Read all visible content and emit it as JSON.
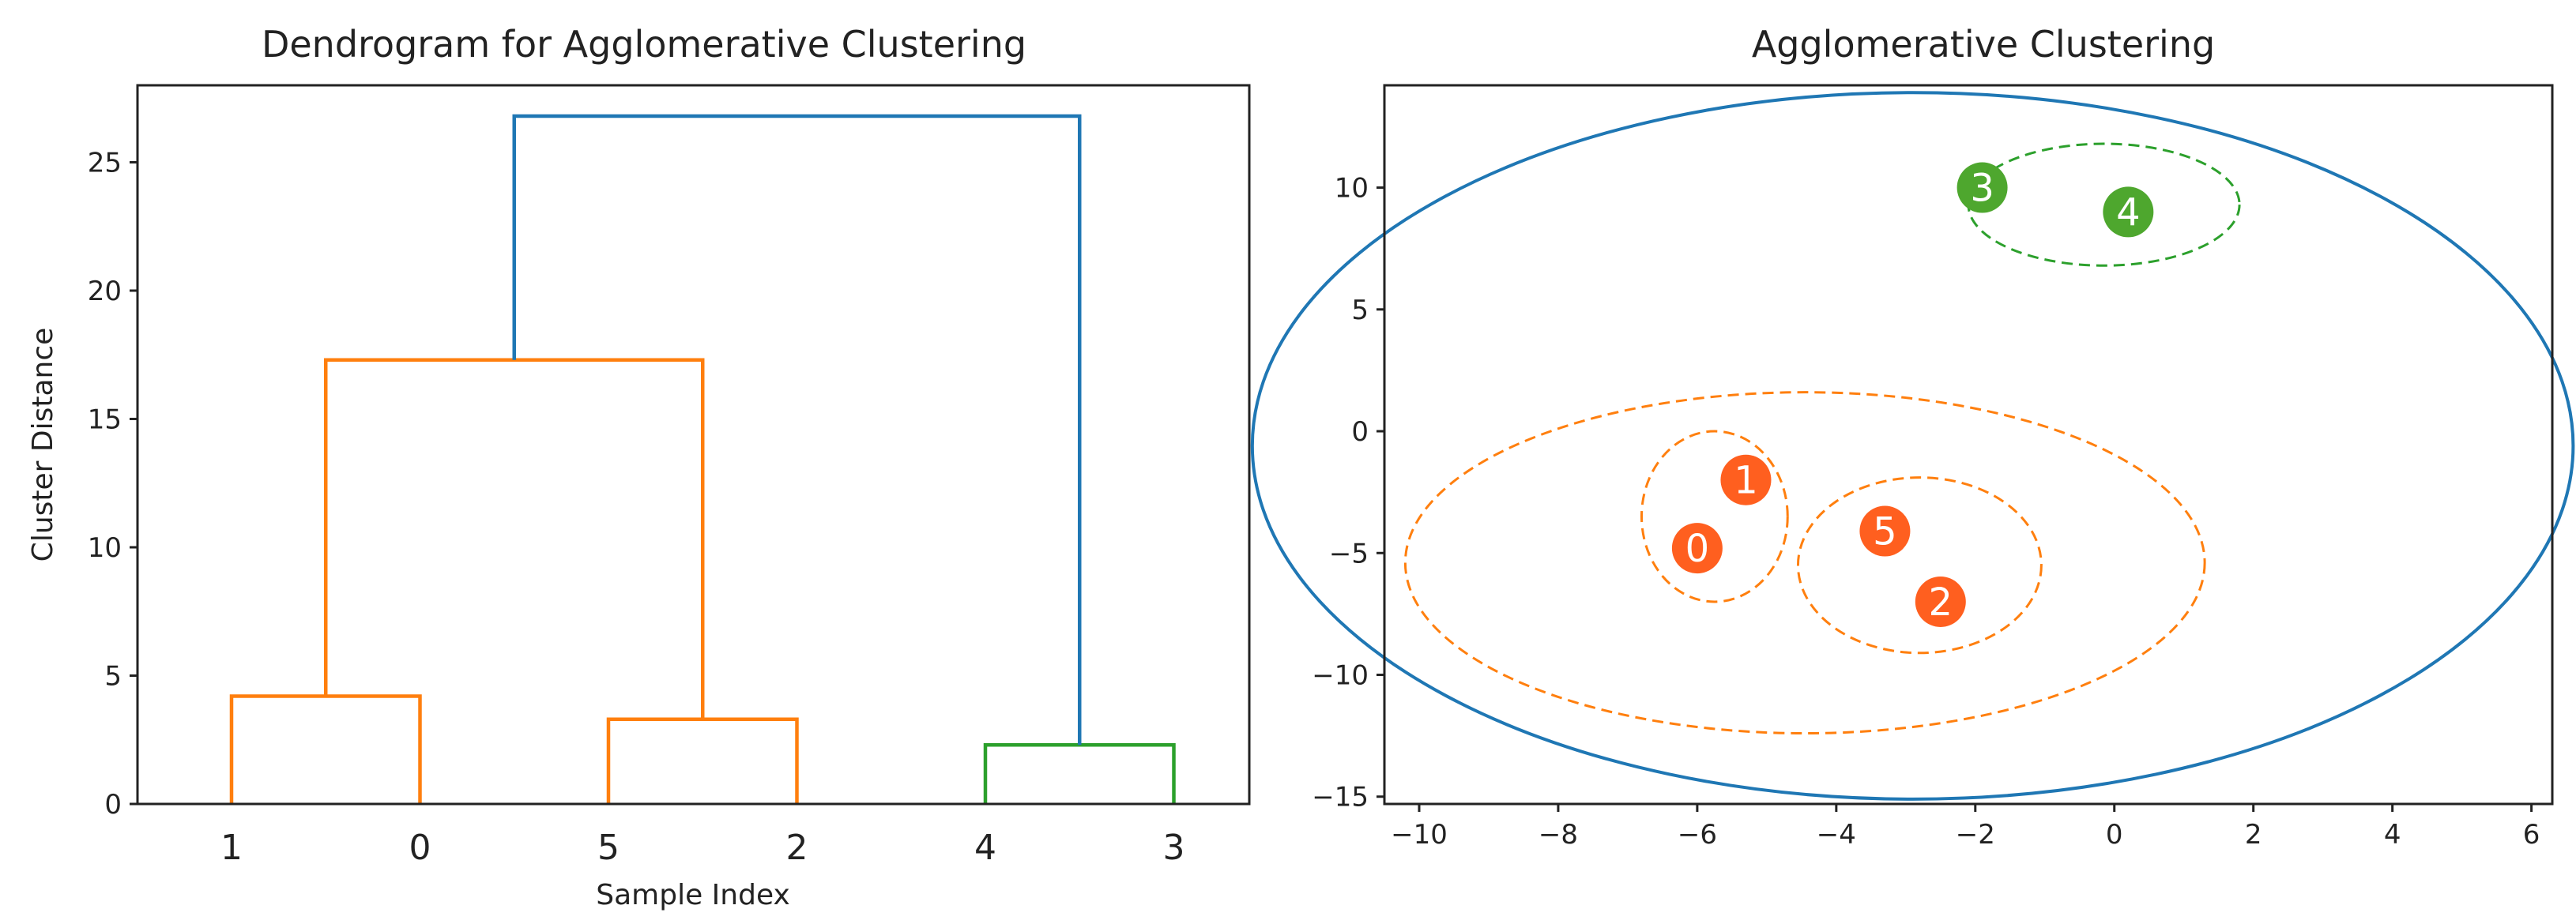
{
  "colors": {
    "orange": "#ff7f0e",
    "blue": "#1f77b4",
    "green": "#2ca02c",
    "marker_orange": "#ff5f1f",
    "marker_green": "#4ea72e"
  },
  "chart_data": [
    {
      "type": "dendrogram",
      "title": "Dendrogram for Agglomerative Clustering",
      "xlabel": "Sample Index",
      "ylabel": "Cluster Distance",
      "leaf_order": [
        "1",
        "0",
        "5",
        "2",
        "4",
        "3"
      ],
      "ylim": [
        0,
        28
      ],
      "yticks": [
        0,
        5,
        10,
        15,
        20,
        25
      ],
      "links": [
        {
          "leaves": [
            0,
            1
          ],
          "height": 4.2,
          "color": "orange"
        },
        {
          "leaves": [
            2,
            3
          ],
          "height": 3.3,
          "color": "orange"
        },
        {
          "leaves": [
            4,
            5
          ],
          "height": 2.3,
          "color": "green"
        },
        {
          "leaves": [
            0.5,
            2.5
          ],
          "height": 17.3,
          "color": "orange"
        },
        {
          "leaves": [
            1.5,
            4.5
          ],
          "height": 26.8,
          "color": "blue"
        }
      ]
    },
    {
      "type": "scatter",
      "title": "Agglomerative Clustering",
      "xlim": [
        -10.5,
        6.3
      ],
      "ylim": [
        -15.3,
        14.2
      ],
      "xticks": [
        -10,
        -8,
        -6,
        -4,
        -2,
        0,
        2,
        4,
        6
      ],
      "yticks": [
        -15,
        -10,
        -5,
        0,
        5,
        10
      ],
      "points": [
        {
          "label": "0",
          "x": -6.0,
          "y": -4.8,
          "cluster": "orange"
        },
        {
          "label": "1",
          "x": -5.3,
          "y": -2.0,
          "cluster": "orange"
        },
        {
          "label": "2",
          "x": -2.5,
          "y": -7.0,
          "cluster": "orange"
        },
        {
          "label": "3",
          "x": -1.9,
          "y": 10.0,
          "cluster": "green"
        },
        {
          "label": "4",
          "x": 0.2,
          "y": 9.0,
          "cluster": "green"
        },
        {
          "label": "5",
          "x": -3.3,
          "y": -4.1,
          "cluster": "orange"
        }
      ],
      "ellipses": [
        {
          "cx": -0.15,
          "cy": 9.3,
          "rx": 1.95,
          "ry": 2.5,
          "angle": 0,
          "color": "green",
          "dashed": true
        },
        {
          "cx": -5.75,
          "cy": -3.5,
          "rx": 1.05,
          "ry": 3.5,
          "angle": 0,
          "color": "orange",
          "dashed": true
        },
        {
          "cx": -2.8,
          "cy": -5.5,
          "rx": 1.75,
          "ry": 3.6,
          "angle": 0,
          "color": "orange",
          "dashed": true
        },
        {
          "cx": -4.45,
          "cy": -5.4,
          "rx": 5.75,
          "ry": 7.0,
          "angle": 0,
          "color": "orange",
          "dashed": true
        },
        {
          "cx": -2.9,
          "cy": -0.6,
          "rx": 9.5,
          "ry": 14.5,
          "angle": 0,
          "color": "blue",
          "dashed": false
        }
      ]
    }
  ]
}
